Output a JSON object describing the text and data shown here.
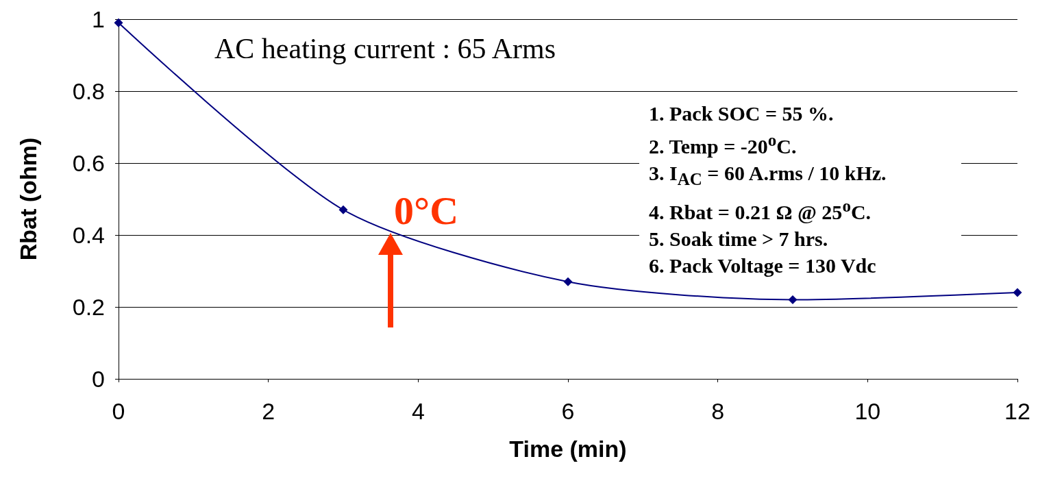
{
  "chart_data": {
    "type": "line",
    "xlabel": "Time (min)",
    "ylabel": "Rbat (ohm)",
    "x": [
      0,
      3,
      6,
      9,
      12
    ],
    "series": [
      {
        "color": "#000080",
        "values": [
          0.99,
          0.47,
          0.27,
          0.22,
          0.24
        ]
      }
    ],
    "xlim": [
      0,
      12
    ],
    "xticks": [
      0,
      2,
      4,
      6,
      8,
      10,
      12
    ],
    "ylim": [
      0,
      1
    ],
    "yticks": [
      0,
      0.2,
      0.4,
      0.6,
      0.8,
      1
    ],
    "grid": "y",
    "marker": "diamond",
    "line_style": "solid",
    "annotations": [
      "AC heating current : 65 Arms",
      "0°C",
      "1. Pack SOC = 55 %.",
      "2. Temp = -20$^{o}$C.",
      "3. I$_{AC}$ = 60 A.rms / 10 kHz.",
      "4. Rbat = 0.21 Ω @ 25$^{o}$C.",
      "5. Soak time > 7 hrs.",
      "6. Pack Voltage = 130 Vdc"
    ]
  }
}
